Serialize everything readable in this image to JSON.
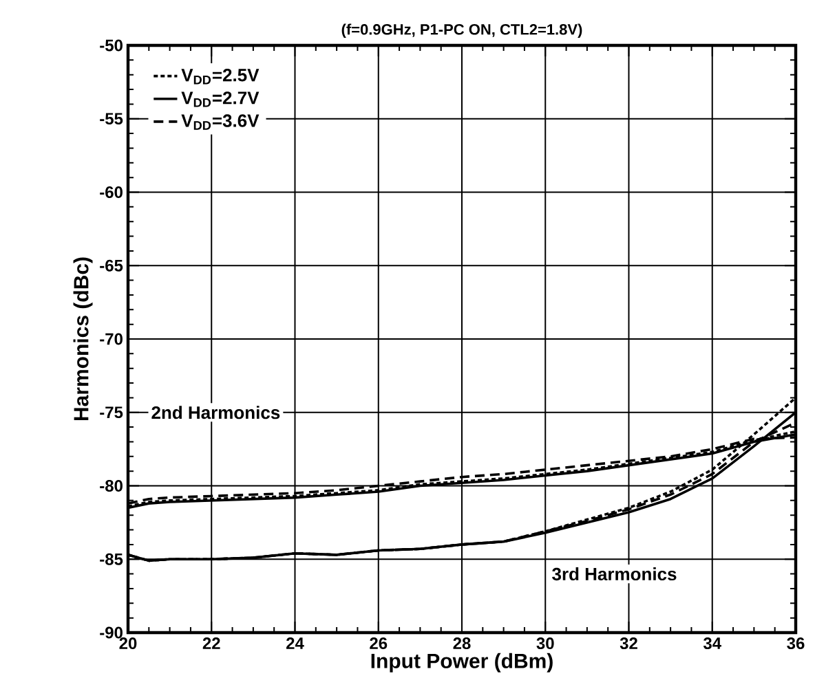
{
  "chart_data": {
    "type": "line",
    "title": "(f=0.9GHz, P1-PC ON, CTL2=1.8V)",
    "xlabel": "Input Power (dBm)",
    "ylabel": "Harmonics (dBc)",
    "x": [
      20,
      20.5,
      21,
      22,
      23,
      24,
      25,
      26,
      27,
      28,
      29,
      30,
      31,
      32,
      33,
      34,
      35,
      36
    ],
    "xlim": [
      20,
      36
    ],
    "xticks": [
      20,
      22,
      24,
      26,
      28,
      30,
      32,
      34,
      36
    ],
    "ylim": [
      -90,
      -50
    ],
    "yticks": [
      -90,
      -85,
      -80,
      -75,
      -70,
      -65,
      -60,
      -55,
      -50
    ],
    "grid": true,
    "legend": "top left",
    "marker": "none",
    "series": [
      {
        "name": "V$_{DD}$=2.5V",
        "color": "#000000",
        "line_style": "dotted",
        "values": [
          -81.4,
          -81.1,
          -81.0,
          -80.9,
          -80.8,
          -80.7,
          -80.5,
          -80.3,
          -79.9,
          -79.7,
          -79.5,
          -79.2,
          -78.9,
          -78.5,
          -78.1,
          -77.7,
          -76.9,
          -76.3
        ]
      },
      {
        "name": "V$_{DD}$=2.7V",
        "color": "#000000",
        "line_style": "solid",
        "values": [
          -81.5,
          -81.2,
          -81.1,
          -81.0,
          -80.9,
          -80.8,
          -80.6,
          -80.4,
          -80.0,
          -79.8,
          -79.6,
          -79.3,
          -79.0,
          -78.6,
          -78.2,
          -77.8,
          -77.0,
          -76.5
        ]
      },
      {
        "name": "V$_{DD}$=3.6V",
        "color": "#000000",
        "line_style": "dashed",
        "values": [
          -81.2,
          -80.9,
          -80.8,
          -80.7,
          -80.6,
          -80.5,
          -80.3,
          -80.0,
          -79.7,
          -79.4,
          -79.2,
          -78.9,
          -78.6,
          -78.3,
          -78.0,
          -77.5,
          -76.8,
          -76.7
        ]
      },
      {
        "color": "#000000",
        "line_style": "dotted",
        "values": [
          -84.7,
          -85.1,
          -85.0,
          -85.0,
          -84.9,
          -84.6,
          -84.7,
          -84.4,
          -84.3,
          -84.0,
          -83.8,
          -83.1,
          -82.3,
          -81.5,
          -80.4,
          -78.9,
          -76.5,
          -74.0
        ]
      },
      {
        "color": "#000000",
        "line_style": "solid",
        "values": [
          -84.7,
          -85.1,
          -85.0,
          -85.0,
          -84.9,
          -84.6,
          -84.7,
          -84.4,
          -84.3,
          -84.0,
          -83.8,
          -83.2,
          -82.5,
          -81.8,
          -80.9,
          -79.5,
          -77.3,
          -75.0
        ]
      },
      {
        "color": "#000000",
        "line_style": "dashed",
        "values": [
          -84.7,
          -85.1,
          -85.0,
          -85.0,
          -84.9,
          -84.6,
          -84.7,
          -84.4,
          -84.3,
          -84.0,
          -83.8,
          -83.1,
          -82.4,
          -81.6,
          -80.6,
          -79.2,
          -77.0,
          -75.7
        ]
      }
    ],
    "annotations": [
      "2nd Harmonics",
      "3rd Harmonics"
    ]
  }
}
